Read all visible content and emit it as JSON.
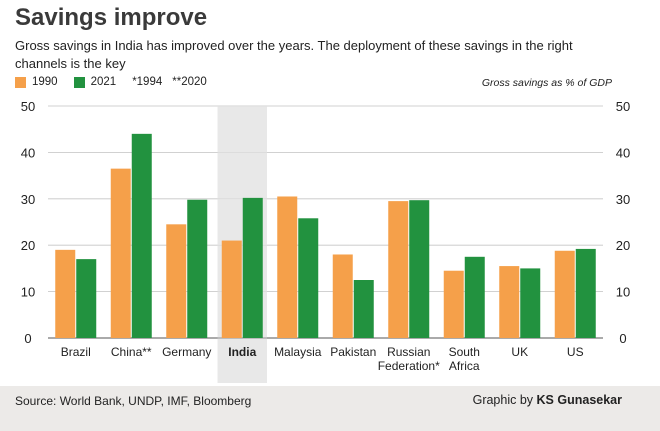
{
  "header": {
    "title": "Savings improve",
    "subtitle": "Gross savings in India has improved over the years. The deployment of these savings in the right channels is the key"
  },
  "legend": {
    "items": [
      {
        "label": "1990",
        "color": "#f5a04a"
      },
      {
        "label": "2021",
        "color": "#22923f"
      }
    ],
    "notes": [
      "*1994",
      "**2020"
    ],
    "unit_label": "Gross savings as % of GDP"
  },
  "footer": {
    "source": "Source: World Bank, UNDP, IMF, Bloomberg",
    "credit_prefix": "Graphic by",
    "credit_name": "KS Gunasekar"
  },
  "chart_data": {
    "type": "bar",
    "title": "Savings improve",
    "ylabel": "Gross savings as % of GDP",
    "ylim": [
      0,
      50
    ],
    "yticks": [
      0,
      10,
      20,
      30,
      40,
      50
    ],
    "grid": true,
    "legend_position": "top-left",
    "categories": [
      [
        "Brazil"
      ],
      [
        "China**"
      ],
      [
        "Germany"
      ],
      [
        "India"
      ],
      [
        "Malaysia"
      ],
      [
        "Pakistan"
      ],
      [
        "Russian",
        "Federation*"
      ],
      [
        "South",
        "Africa"
      ],
      [
        "UK"
      ],
      [
        "US"
      ]
    ],
    "highlight_category": "India",
    "series": [
      {
        "name": "1990",
        "color": "#f5a04a",
        "values": [
          19,
          36.5,
          24.5,
          21,
          30.5,
          18,
          29.5,
          14.5,
          15.5,
          18.8
        ]
      },
      {
        "name": "2021",
        "color": "#22923f",
        "values": [
          17,
          44,
          29.8,
          30.2,
          25.8,
          12.5,
          29.7,
          17.5,
          15,
          19.2
        ]
      }
    ]
  }
}
